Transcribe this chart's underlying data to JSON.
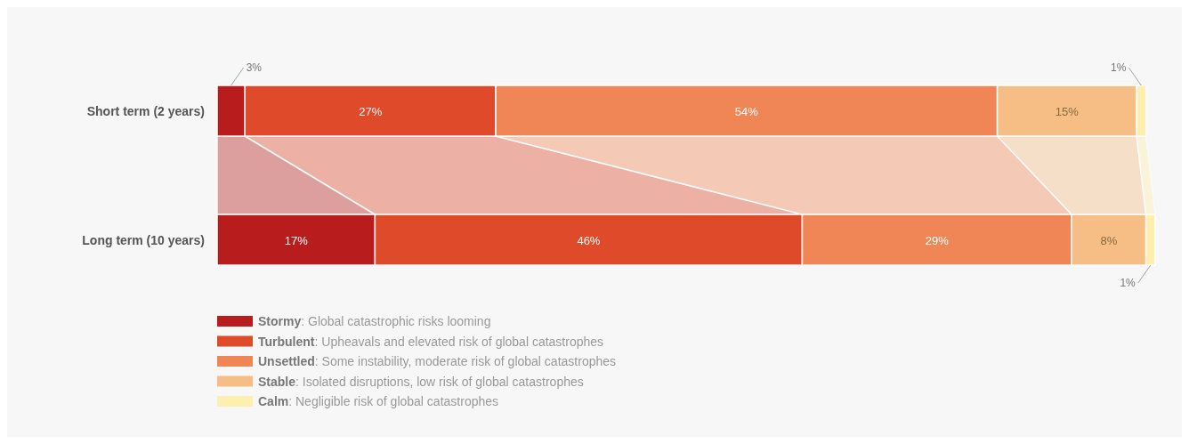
{
  "chart_data": {
    "type": "bar",
    "orientation": "horizontal",
    "stacked": true,
    "legend": "bottom left",
    "categories": [
      "Short term (2 years)",
      "Long term (10 years)"
    ],
    "series": [
      {
        "name": "Stormy: Global catastrophic risks looming",
        "color": "#b81c1c",
        "values": [
          3,
          17
        ],
        "value_labels": [
          "3%",
          "17%"
        ]
      },
      {
        "name": "Turbulent: Upheavals and elevated risk of global catastrophes",
        "color": "#de4a2a",
        "values": [
          27,
          46
        ],
        "value_labels": [
          "27%",
          "46%"
        ]
      },
      {
        "name": "Unsettled: Some instability, moderate risk of global catastrophes",
        "color": "#f08656",
        "values": [
          54,
          29
        ],
        "value_labels": [
          "54%",
          "29%"
        ]
      },
      {
        "name": "Stable: Isolated disruptions, low risk of global catastrophes",
        "color": "#f6bd84",
        "values": [
          15,
          8
        ],
        "value_labels": [
          "15%",
          "8%"
        ]
      },
      {
        "name": "Calm: Negligible risk of global catastrophes",
        "color": "#fcefb0",
        "values": [
          1,
          1
        ],
        "value_labels": [
          "1%",
          "1%"
        ]
      }
    ]
  }
}
